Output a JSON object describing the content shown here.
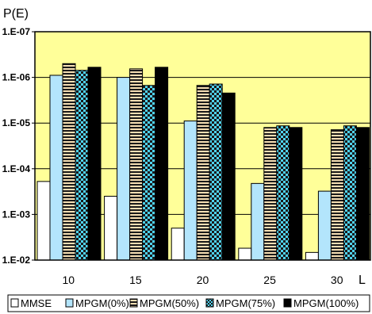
{
  "chart_data": {
    "type": "bar",
    "ylabel": "P(E)",
    "xlabel": "L",
    "y_scale": "log",
    "y_axis_orientation": "inverted",
    "ylim": [
      0.01,
      1e-07
    ],
    "yticks": [
      "1.E-07",
      "1.E-06",
      "1.E-05",
      "1.E-04",
      "1.E-03",
      "1.E-02"
    ],
    "grid": true,
    "plot_background": "#FFFF99",
    "legend_position": "bottom",
    "categories": [
      "10",
      "15",
      "20",
      "25",
      "30"
    ],
    "series": [
      {
        "name": "MMSE",
        "pattern": "white",
        "values": [
          0.00019,
          0.0004,
          0.002,
          0.0055,
          0.0068
        ]
      },
      {
        "name": "MPGM(0%)",
        "pattern": "light-blue",
        "values": [
          9e-07,
          1e-06,
          9e-06,
          0.00021,
          0.00031
        ]
      },
      {
        "name": "MPGM(50%)",
        "pattern": "horizontal-stripes",
        "values": [
          5e-07,
          6.5e-07,
          1.5e-06,
          1.25e-05,
          1.4e-05
        ]
      },
      {
        "name": "MPGM(75%)",
        "pattern": "checkered",
        "values": [
          7e-07,
          1.5e-06,
          1.4e-06,
          1.15e-05,
          1.15e-05
        ]
      },
      {
        "name": "MPGM(100%)",
        "pattern": "black",
        "values": [
          6e-07,
          6e-07,
          2.2e-06,
          1.25e-05,
          1.25e-05
        ]
      }
    ]
  }
}
